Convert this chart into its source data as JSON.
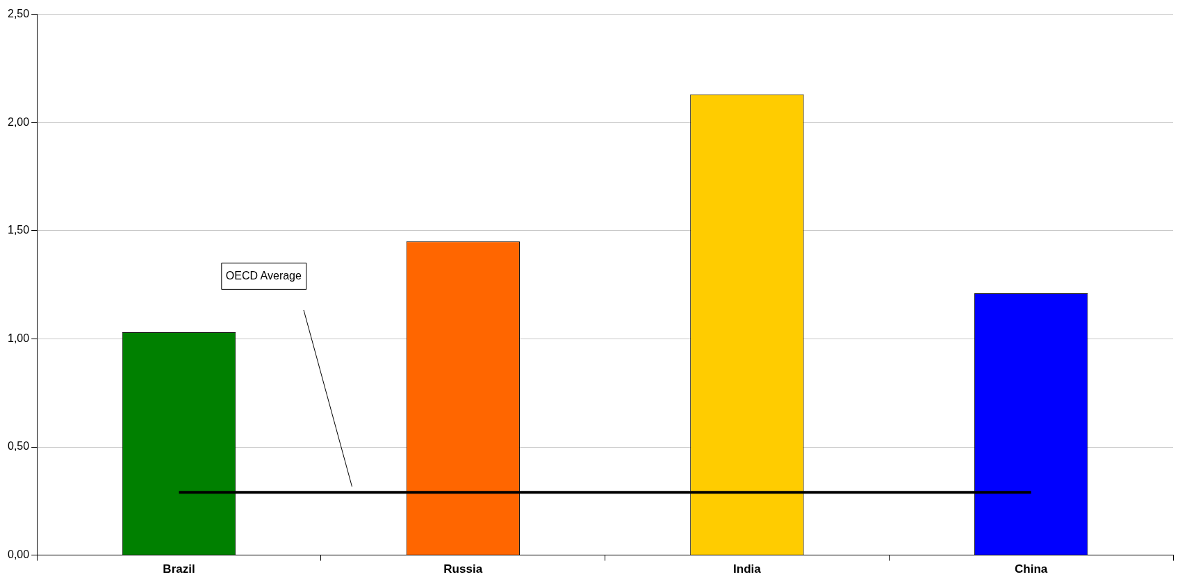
{
  "chart_data": {
    "type": "bar",
    "categories": [
      "Brazil",
      "Russia",
      "India",
      "China"
    ],
    "values": [
      1.03,
      1.45,
      2.13,
      1.21
    ],
    "colors": [
      "#008000",
      "#ff6600",
      "#ffcc00",
      "#0000ff"
    ],
    "ylim": [
      0,
      2.5
    ],
    "yticks": [
      {
        "value": 0,
        "label": "0,00"
      },
      {
        "value": 0.5,
        "label": "0,50"
      },
      {
        "value": 1,
        "label": "1,00"
      },
      {
        "value": 1.5,
        "label": "1,50"
      },
      {
        "value": 2,
        "label": "2,00"
      },
      {
        "value": 2.5,
        "label": "2,50"
      }
    ],
    "grid": "y",
    "legend": false,
    "ref_lines": [
      {
        "axis": "y",
        "value": 0.29,
        "label": "OECD Average",
        "color": "#000000"
      }
    ]
  }
}
